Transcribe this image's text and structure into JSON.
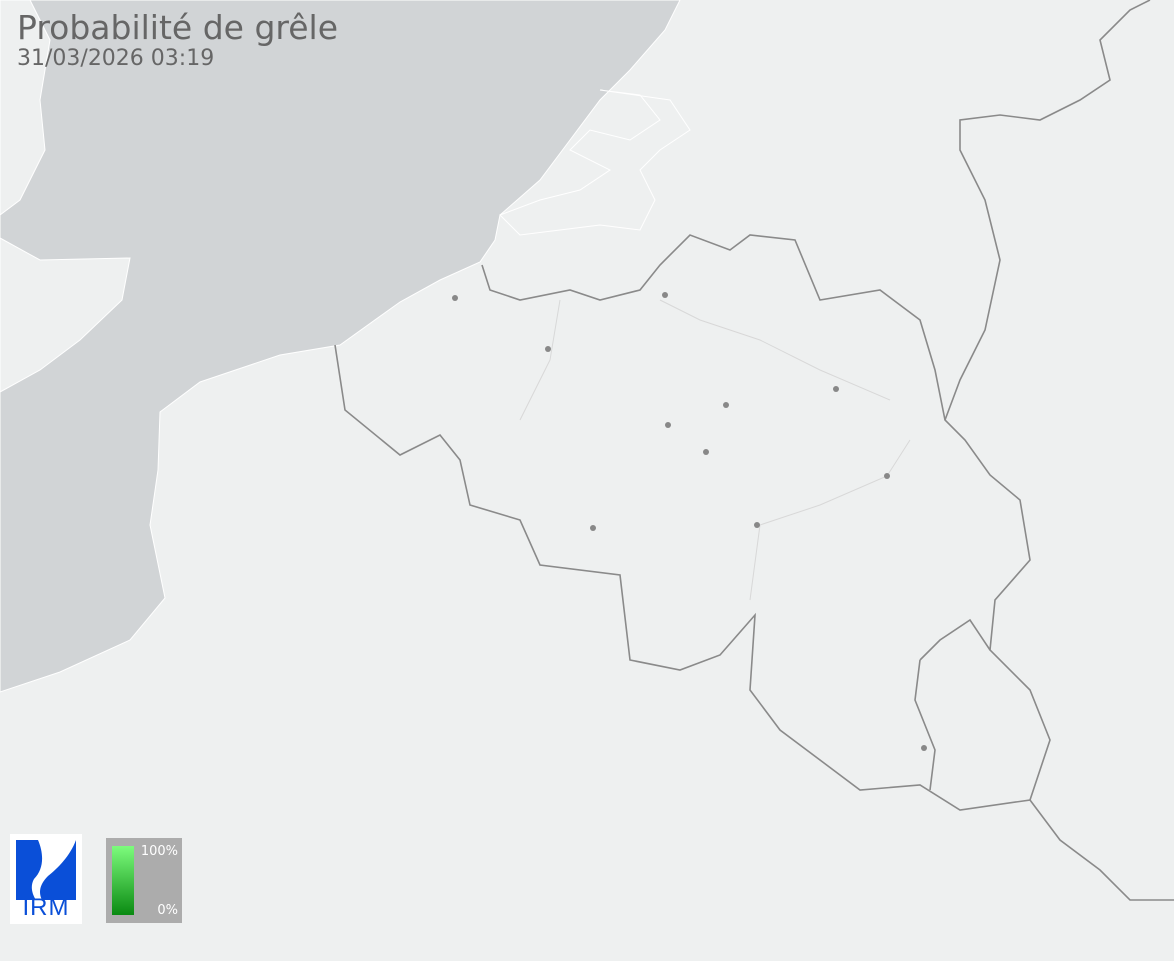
{
  "header": {
    "title": "Probabilité de grêle",
    "timestamp": "31/03/2026 03:19"
  },
  "logo": {
    "text": "IRM",
    "color": "#0a4fd8"
  },
  "legend": {
    "max_label": "100%",
    "min_label": "0%",
    "color_high": "#7dfc7d",
    "color_low": "#0a8a12"
  },
  "map": {
    "sea_color": "#d1d4d6",
    "land_color": "#eef0f0",
    "border_color": "#8a8a8a",
    "city_marker_color": "#888888"
  }
}
